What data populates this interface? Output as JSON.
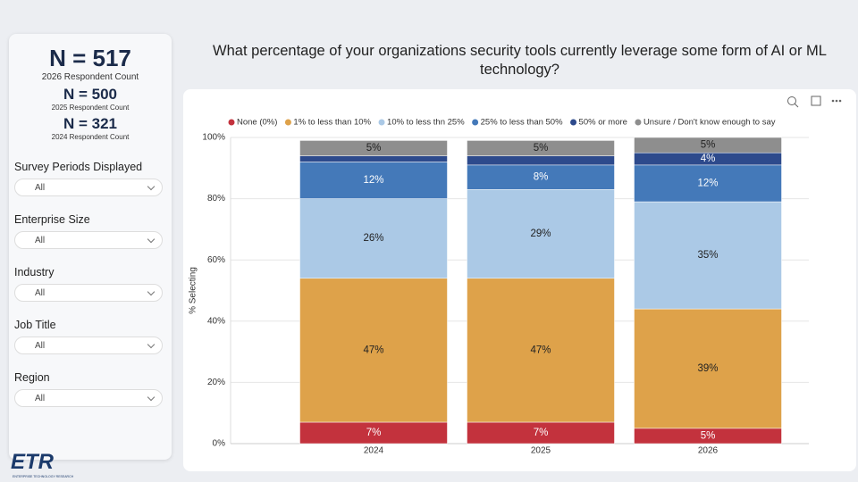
{
  "sidebar": {
    "counts": [
      {
        "value": "N = 517",
        "label": "2026 Respondent Count"
      },
      {
        "value": "N = 500",
        "label": "2025 Respondent Count"
      },
      {
        "value": "N = 321",
        "label": "2024 Respondent Count"
      }
    ],
    "filters": [
      {
        "label": "Survey Periods Displayed",
        "value": "All"
      },
      {
        "label": "Enterprise Size",
        "value": "All"
      },
      {
        "label": "Industry",
        "value": "All"
      },
      {
        "label": "Job Title",
        "value": "All"
      },
      {
        "label": "Region",
        "value": "All"
      }
    ],
    "logo": "ETR",
    "logo_subtitle": "ENTERPRISE TECHNOLOGY RESEARCH"
  },
  "chart_data": {
    "type": "stacked_bar",
    "title": "What percentage of your organizations security tools currently leverage some form of AI or ML technology?",
    "y_label": "% Selecting",
    "categories": [
      "2024",
      "2025",
      "2026"
    ],
    "ylim": [
      0,
      100
    ],
    "yticks": [
      {
        "value": 0,
        "label": "0%"
      },
      {
        "value": 20,
        "label": "20%"
      },
      {
        "value": 40,
        "label": "40%"
      },
      {
        "value": 60,
        "label": "60%"
      },
      {
        "value": 80,
        "label": "80%"
      },
      {
        "value": 100,
        "label": "100%"
      }
    ],
    "grid": true,
    "legend": "top",
    "series": [
      {
        "name": "None (0%)",
        "color": "#c3323d",
        "values": [
          7,
          7,
          5
        ],
        "value_labels": [
          "7%",
          "7%",
          "5%"
        ]
      },
      {
        "name": "1% to less than 10%",
        "color": "#dea24a",
        "values": [
          47,
          47,
          39
        ],
        "value_labels": [
          "47%",
          "47%",
          "39%"
        ]
      },
      {
        "name": "10% to less thn 25%",
        "color": "#abc9e6",
        "values": [
          26,
          29,
          35
        ],
        "value_labels": [
          "26%",
          "29%",
          "35%"
        ]
      },
      {
        "name": "25% to less than 50%",
        "color": "#4479b9",
        "values": [
          12,
          8,
          12
        ],
        "value_labels": [
          "12%",
          "8%",
          "12%"
        ]
      },
      {
        "name": "50% or more",
        "color": "#2d4a8c",
        "values": [
          2,
          3,
          4
        ],
        "value_labels": [
          null,
          null,
          "4%"
        ]
      },
      {
        "name": "Unsure / Don't know enough to say",
        "color": "#8e8e8e",
        "values": [
          5,
          5,
          5
        ],
        "value_labels": [
          "5%",
          "5%",
          "5%"
        ]
      }
    ]
  }
}
